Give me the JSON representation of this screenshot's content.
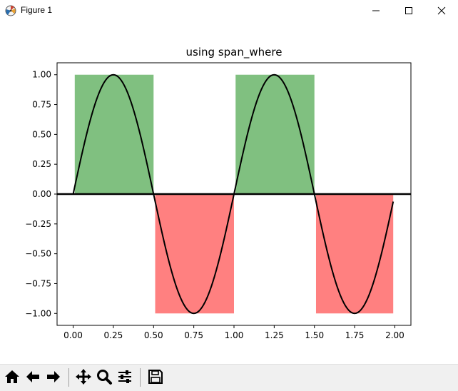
{
  "window": {
    "title": "Figure 1",
    "icons": [
      "matplotlib-logo-icon",
      "minimize-icon",
      "maximize-icon",
      "close-icon"
    ]
  },
  "toolbar": {
    "tools": [
      "home-icon",
      "back-arrow-icon",
      "forward-arrow-icon",
      "pan-icon",
      "zoom-icon",
      "configure-subplots-icon",
      "save-icon"
    ]
  },
  "chart_data": {
    "type": "line",
    "title": "using span_where",
    "xlabel": "",
    "ylabel": "",
    "xlim": [
      -0.1,
      2.1
    ],
    "ylim": [
      -1.1,
      1.1
    ],
    "xticks": [
      "0.00",
      "0.25",
      "0.50",
      "0.75",
      "1.00",
      "1.25",
      "1.50",
      "1.75",
      "2.00"
    ],
    "yticks": [
      "1.00",
      "0.75",
      "0.50",
      "0.25",
      "0.00",
      "−0.25",
      "−0.50",
      "−0.75",
      "−1.00"
    ],
    "xtick_values": [
      0,
      0.25,
      0.5,
      0.75,
      1.0,
      1.25,
      1.5,
      1.75,
      2.0
    ],
    "ytick_values": [
      1.0,
      0.75,
      0.5,
      0.25,
      0.0,
      -0.25,
      -0.5,
      -0.75,
      -1.0
    ],
    "series": [
      {
        "function": "sin(2*pi*t)",
        "t_start": 0.0,
        "t_end": 1.99,
        "t_step": 0.01,
        "color": "#000000"
      }
    ],
    "horizontal_line": {
      "y": 0,
      "color": "#000000"
    },
    "spans": [
      {
        "x0": 0.01,
        "x1": 0.5,
        "y0": 0,
        "y1": 1,
        "color": "#80c080",
        "condition": "y > 0"
      },
      {
        "x0": 0.51,
        "x1": 1.0,
        "y0": -1,
        "y1": 0,
        "color": "#ff8080",
        "condition": "y < 0"
      },
      {
        "x0": 1.01,
        "x1": 1.5,
        "y0": 0,
        "y1": 1,
        "color": "#80c080",
        "condition": "y > 0"
      },
      {
        "x0": 1.51,
        "x1": 1.99,
        "y0": -1,
        "y1": 0,
        "color": "#ff8080",
        "condition": "y < 0"
      }
    ],
    "grid": false
  }
}
